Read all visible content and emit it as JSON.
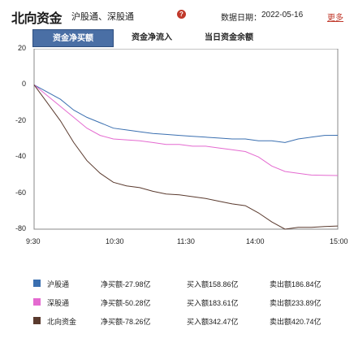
{
  "header": {
    "title": "北向资金",
    "subtitle": "沪股通、深股通",
    "help_icon": "help-icon",
    "date_label": "数据日期：",
    "date_value": "2022-05-16",
    "more_label": "更多"
  },
  "tabs": [
    {
      "label": "资金净买额",
      "active": true
    },
    {
      "label": "资金净流入",
      "active": false
    },
    {
      "label": "当日资金余额",
      "active": false
    }
  ],
  "colors": {
    "shanghai": "#3a6fb0",
    "shenzhen": "#e46ad0",
    "total": "#5a3a2e",
    "tab_active": "#4a6fa5"
  },
  "chart_data": {
    "type": "line",
    "x_ticks": [
      "9:30",
      "10:30",
      "11:30",
      "14:00",
      "15:00"
    ],
    "y_ticks": [
      "20",
      "0",
      "-20",
      "-40",
      "-60",
      "-80"
    ],
    "ylim": [
      -80,
      20
    ],
    "series": [
      {
        "name": "沪股通",
        "color": "#3a6fb0",
        "values": [
          0,
          -4,
          -8,
          -14,
          -18,
          -21,
          -24,
          -25,
          -26,
          -27,
          -27.5,
          -28,
          -28.5,
          -29,
          -29.5,
          -30,
          -30,
          -31,
          -31,
          -32,
          -30,
          -29,
          -28,
          -27.98
        ]
      },
      {
        "name": "深股通",
        "color": "#e46ad0",
        "values": [
          0,
          -6,
          -12,
          -18,
          -24,
          -28,
          -30,
          -30.5,
          -31,
          -32,
          -33,
          -33,
          -34,
          -34,
          -35,
          -36,
          -37,
          -40,
          -45,
          -48,
          -49,
          -50,
          -50.2,
          -50.28
        ]
      },
      {
        "name": "北向资金",
        "color": "#5a3a2e",
        "values": [
          0,
          -10,
          -20,
          -32,
          -42,
          -49,
          -54,
          -56,
          -57,
          -59,
          -60.5,
          -61,
          -62,
          -63,
          -64.5,
          -66,
          -67,
          -71,
          -76,
          -80,
          -79,
          -79,
          -78.5,
          -78.26
        ]
      }
    ]
  },
  "legend": [
    {
      "name": "沪股通",
      "color": "#3a6fb0",
      "net": "净买额-27.98亿",
      "buy": "买入额158.86亿",
      "sell": "卖出额186.84亿"
    },
    {
      "name": "深股通",
      "color": "#e46ad0",
      "net": "净买额-50.28亿",
      "buy": "买入额183.61亿",
      "sell": "卖出额233.89亿"
    },
    {
      "name": "北向资金",
      "color": "#5a3a2e",
      "net": "净买额-78.26亿",
      "buy": "买入额342.47亿",
      "sell": "卖出额420.74亿"
    }
  ]
}
